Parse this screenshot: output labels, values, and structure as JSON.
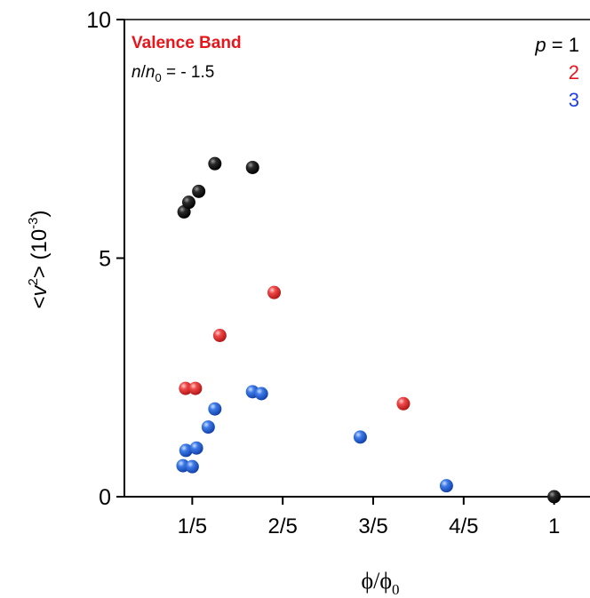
{
  "chart_data": {
    "type": "scatter",
    "xlabel": {
      "main": "ϕ/ϕ",
      "sub": "0"
    },
    "ylabel": {
      "pre": "<",
      "var": "v",
      "sup": "2",
      "post": "> (10",
      "unit_sup": "-3",
      "close": ")"
    },
    "xlim": [
      0.05,
      1.15
    ],
    "ylim": [
      0,
      10
    ],
    "x_ticks": [
      {
        "value": 0.2,
        "label": "1/5"
      },
      {
        "value": 0.4,
        "label": "2/5"
      },
      {
        "value": 0.6,
        "label": "3/5"
      },
      {
        "value": 0.8,
        "label": "4/5"
      },
      {
        "value": 1.0,
        "label": "1"
      }
    ],
    "y_ticks": [
      {
        "value": 0,
        "label": "0"
      },
      {
        "value": 5,
        "label": "5"
      },
      {
        "value": 10,
        "label": "10"
      }
    ],
    "annotations": {
      "band": "Valence Band",
      "density": {
        "n": "n",
        "sep": "/",
        "n0": "n",
        "n0_sub": "0",
        "value": " = - 1.5"
      }
    },
    "legend": {
      "placement": "top-right",
      "p_label": "p",
      "equals": " = ",
      "entries": [
        "1",
        "2",
        "3"
      ]
    },
    "series": [
      {
        "color": "#000000",
        "points": [
          {
            "x": 0.1818,
            "y": 5.97
          },
          {
            "x": 0.1923,
            "y": 6.17
          },
          {
            "x": 0.2143,
            "y": 6.4
          },
          {
            "x": 0.25,
            "y": 6.98
          },
          {
            "x": 0.3333,
            "y": 6.9
          },
          {
            "x": 1.0,
            "y": 0.0
          }
        ]
      },
      {
        "color": "#e03030",
        "points": [
          {
            "x": 0.1852,
            "y": 2.27
          },
          {
            "x": 0.2069,
            "y": 2.27
          },
          {
            "x": 0.2609,
            "y": 3.38
          },
          {
            "x": 0.381,
            "y": 4.28
          },
          {
            "x": 0.6667,
            "y": 1.95
          }
        ]
      },
      {
        "color": "#1f5fd8",
        "points": [
          {
            "x": 0.1795,
            "y": 0.65
          },
          {
            "x": 0.186,
            "y": 0.97
          },
          {
            "x": 0.2,
            "y": 0.63
          },
          {
            "x": 0.2093,
            "y": 1.02
          },
          {
            "x": 0.2353,
            "y": 1.46
          },
          {
            "x": 0.25,
            "y": 1.84
          },
          {
            "x": 0.3333,
            "y": 2.2
          },
          {
            "x": 0.3529,
            "y": 2.16
          },
          {
            "x": 0.5714,
            "y": 1.25
          },
          {
            "x": 0.7619,
            "y": 0.23
          }
        ]
      }
    ],
    "colors": {
      "axis": "#000000",
      "annotation_red": "#e8151b",
      "legend_p2": "#e8151b",
      "legend_p3": "#1f3fe8"
    }
  }
}
